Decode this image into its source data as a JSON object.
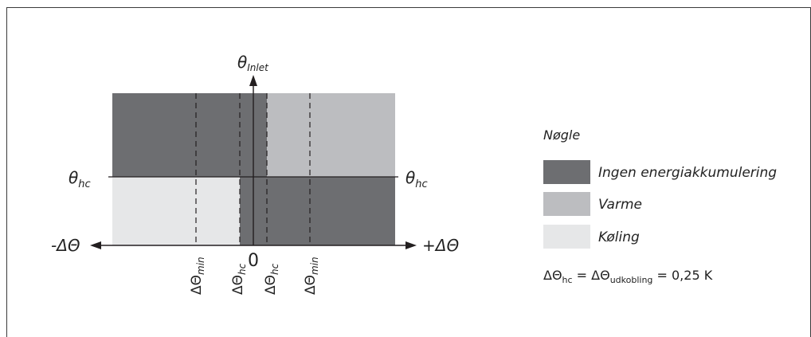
{
  "colors": {
    "dark": "#6d6e71",
    "medium": "#bcbdc0",
    "light": "#e6e7e8",
    "line": "#231f20"
  },
  "diagram": {
    "y_axis_label_main": "θ",
    "y_axis_label_sub": "Inlet",
    "left_threshold_main": "θ",
    "left_threshold_sub": "hc",
    "right_threshold_main": "θ",
    "right_threshold_sub": "hc",
    "x_axis_left": "-ΔΘ",
    "x_axis_right": "+ΔΘ",
    "zero_label": "0",
    "ticks": [
      {
        "main": "ΔΘ",
        "sub": "min"
      },
      {
        "main": "ΔΘ",
        "sub": "hc"
      },
      {
        "main": "ΔΘ",
        "sub": "hc"
      },
      {
        "main": "ΔΘ",
        "sub": "min"
      }
    ]
  },
  "legend": {
    "title": "Nøgle",
    "items": [
      {
        "label": "Ingen energiakkumulering",
        "color": "#6d6e71"
      },
      {
        "label": "Varme",
        "color": "#bcbdc0"
      },
      {
        "label": "Køling",
        "color": "#e6e7e8"
      }
    ],
    "formula_part1": "ΔΘ",
    "formula_sub1": "hc",
    "formula_part2": " = ΔΘ",
    "formula_sub2": "udkobling",
    "formula_part3": " = 0,25 K"
  }
}
